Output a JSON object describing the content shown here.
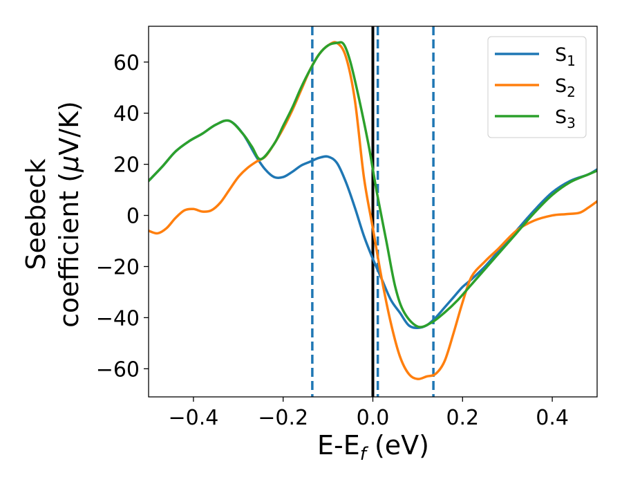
{
  "chart_data": {
    "type": "line",
    "xlabel": "E-E_f (eV)",
    "xlabel_parts": {
      "main": "E-E",
      "sub": "f",
      "unit": " (eV)"
    },
    "ylabel_line1": "Seebeck",
    "ylabel_line2_a": "coefficient  (",
    "ylabel_line2_mu": "μ",
    "ylabel_line2_b": "V/K)",
    "xlim": [
      -0.5,
      0.5
    ],
    "ylim": [
      -71,
      74
    ],
    "xticks": [
      -0.4,
      -0.2,
      0.0,
      0.2,
      0.4
    ],
    "xtick_labels": [
      "−0.4",
      "−0.2",
      "0.0",
      "0.2",
      "0.4"
    ],
    "yticks": [
      -60,
      -40,
      -20,
      0,
      20,
      40,
      60
    ],
    "ytick_labels": [
      "−60",
      "−40",
      "−20",
      "0",
      "20",
      "40",
      "60"
    ],
    "grid": false,
    "legend_position": "top-right",
    "vertical_lines": [
      {
        "x": -0.135,
        "style": "dashed",
        "color": "#1f77b4"
      },
      {
        "x": 0.011,
        "style": "dashed",
        "color": "#1f77b4"
      },
      {
        "x": 0.135,
        "style": "dashed",
        "color": "#1f77b4"
      },
      {
        "x": 0.0,
        "style": "solid",
        "color": "#000000"
      }
    ],
    "series": [
      {
        "name": "S1",
        "label_main": "S",
        "label_sub": "1",
        "color": "#1f77b4",
        "x": [
          -0.5,
          -0.47,
          -0.44,
          -0.41,
          -0.38,
          -0.35,
          -0.32,
          -0.29,
          -0.26,
          -0.24,
          -0.22,
          -0.2,
          -0.18,
          -0.16,
          -0.14,
          -0.12,
          -0.1,
          -0.08,
          -0.06,
          -0.04,
          -0.02,
          0.0,
          0.02,
          0.04,
          0.06,
          0.08,
          0.1,
          0.12,
          0.14,
          0.16,
          0.18,
          0.2,
          0.22,
          0.25,
          0.28,
          0.32,
          0.36,
          0.4,
          0.44,
          0.48,
          0.5
        ],
        "y": [
          13.5,
          19,
          25,
          29,
          32,
          35.5,
          37,
          32,
          23,
          18,
          15,
          15,
          17,
          19.5,
          21,
          22.5,
          23,
          20.5,
          13,
          3,
          -8,
          -17,
          -25,
          -33,
          -38,
          -43,
          -44,
          -43,
          -40,
          -36,
          -32,
          -28,
          -25,
          -20,
          -14,
          -6,
          2,
          9,
          13.5,
          16,
          18
        ]
      },
      {
        "name": "S2",
        "label_main": "S",
        "label_sub": "2",
        "color": "#ff7f0e",
        "x": [
          -0.5,
          -0.48,
          -0.46,
          -0.44,
          -0.42,
          -0.4,
          -0.38,
          -0.36,
          -0.34,
          -0.32,
          -0.3,
          -0.28,
          -0.26,
          -0.24,
          -0.22,
          -0.2,
          -0.18,
          -0.16,
          -0.14,
          -0.12,
          -0.1,
          -0.08,
          -0.06,
          -0.04,
          -0.02,
          0.0,
          0.02,
          0.04,
          0.06,
          0.08,
          0.1,
          0.12,
          0.14,
          0.16,
          0.18,
          0.2,
          0.22,
          0.25,
          0.28,
          0.32,
          0.36,
          0.4,
          0.43,
          0.46,
          0.48,
          0.5
        ],
        "y": [
          -6,
          -7,
          -5,
          -1,
          2,
          2.5,
          1.5,
          2,
          5,
          10,
          15,
          18.5,
          21,
          23,
          28,
          34,
          41,
          49,
          57,
          63,
          66.5,
          67.5,
          62,
          45,
          15,
          -5,
          -25,
          -42,
          -55,
          -62,
          -64,
          -63,
          -62,
          -57,
          -46,
          -34,
          -24,
          -18,
          -13,
          -6,
          -2,
          0,
          0.5,
          1,
          3,
          5.5
        ]
      },
      {
        "name": "S3",
        "label_main": "S",
        "label_sub": "3",
        "color": "#2ca02c",
        "x": [
          -0.5,
          -0.47,
          -0.44,
          -0.41,
          -0.38,
          -0.35,
          -0.32,
          -0.29,
          -0.27,
          -0.25,
          -0.22,
          -0.2,
          -0.18,
          -0.16,
          -0.14,
          -0.12,
          -0.1,
          -0.08,
          -0.065,
          -0.05,
          -0.03,
          -0.01,
          0.0,
          0.01,
          0.03,
          0.05,
          0.07,
          0.1,
          0.13,
          0.16,
          0.19,
          0.22,
          0.25,
          0.28,
          0.32,
          0.36,
          0.4,
          0.44,
          0.48,
          0.5
        ],
        "y": [
          13.5,
          19,
          25,
          29,
          32,
          35.5,
          37,
          32,
          27,
          22,
          28,
          35,
          42,
          50,
          57,
          63,
          66.5,
          67.5,
          67,
          60,
          45,
          28,
          18,
          8,
          -10,
          -28,
          -38,
          -43.5,
          -42,
          -38,
          -33,
          -27,
          -21,
          -15,
          -7,
          1,
          8,
          13,
          16,
          17.5
        ]
      }
    ]
  }
}
